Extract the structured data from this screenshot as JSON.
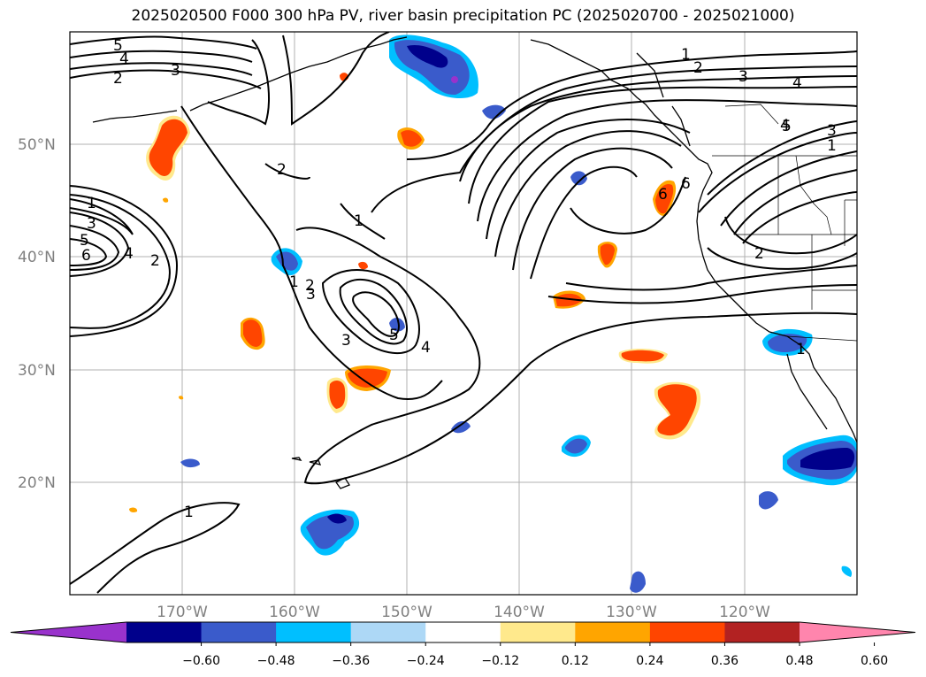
{
  "title": "2025020500 F000 300 hPa PV, river basin precipitation PC (2025020700 - 2025021000)",
  "lat_labels": [
    "50°N",
    "40°N",
    "30°N",
    "20°N"
  ],
  "lon_labels": [
    "170°W",
    "160°W",
    "150°W",
    "140°W",
    "130°W",
    "120°W"
  ],
  "contour_labels": [
    "5",
    "4",
    "2",
    "3",
    "1",
    "2",
    "3",
    "4",
    "5",
    "1",
    "2",
    "3",
    "4",
    "5",
    "6",
    "2",
    "1",
    "6",
    "3",
    "1",
    "2",
    "1",
    "3",
    "4",
    "1",
    "2",
    "3",
    "4",
    "5",
    "6",
    "1"
  ],
  "colorbar": {
    "ticks": [
      "−0.60",
      "−0.48",
      "−0.36",
      "−0.24",
      "−0.12",
      "0.12",
      "0.24",
      "0.36",
      "0.48",
      "0.60"
    ],
    "colors": [
      "#9932CC",
      "#00008B",
      "#3A5BCB",
      "#00BFFF",
      "#ADD8F6",
      "#FFFFFF",
      "#FFE98C",
      "#FFA500",
      "#FF4500",
      "#B22222",
      "#FF85AD"
    ]
  }
}
